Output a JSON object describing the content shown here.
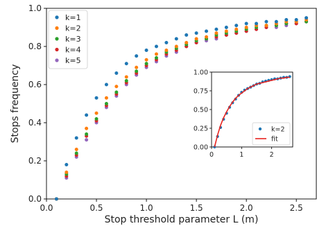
{
  "chart_data": [
    {
      "type": "scatter",
      "title": "",
      "xlabel": "Stop threshold parameter L (m)",
      "ylabel": "Stops frequency",
      "xlim": [
        0.0,
        2.7
      ],
      "ylim": [
        0.0,
        1.0
      ],
      "xticks": [
        "0.0",
        "0.5",
        "1.0",
        "1.5",
        "2.0",
        "2.5"
      ],
      "yticks": [
        "0.0",
        "0.2",
        "0.4",
        "0.6",
        "0.8",
        "1.0"
      ],
      "legend_position": "top-left",
      "grid": false,
      "x": [
        0.1,
        0.2,
        0.3,
        0.4,
        0.5,
        0.6,
        0.7,
        0.8,
        0.9,
        1.0,
        1.1,
        1.2,
        1.3,
        1.4,
        1.5,
        1.6,
        1.7,
        1.8,
        1.9,
        2.0,
        2.1,
        2.2,
        2.3,
        2.4,
        2.5,
        2.6
      ],
      "series": [
        {
          "name": "k=1",
          "color": "#1f77b4",
          "values": [
            0.0,
            0.18,
            0.32,
            0.44,
            0.53,
            0.6,
            0.66,
            0.71,
            0.75,
            0.78,
            0.8,
            0.82,
            0.84,
            0.86,
            0.87,
            0.88,
            0.89,
            0.9,
            0.91,
            0.92,
            0.92,
            0.93,
            0.93,
            0.94,
            0.94,
            0.95
          ]
        },
        {
          "name": "k=2",
          "color": "#ff7f0e",
          "values": [
            0.0,
            0.14,
            0.26,
            0.37,
            0.45,
            0.53,
            0.59,
            0.64,
            0.69,
            0.73,
            0.76,
            0.78,
            0.8,
            0.82,
            0.84,
            0.85,
            0.87,
            0.88,
            0.89,
            0.9,
            0.91,
            0.91,
            0.92,
            0.93,
            0.93,
            0.94
          ]
        },
        {
          "name": "k=3",
          "color": "#2ca02c",
          "values": [
            0.0,
            0.13,
            0.24,
            0.34,
            0.42,
            0.5,
            0.56,
            0.62,
            0.67,
            0.71,
            0.74,
            0.77,
            0.79,
            0.81,
            0.83,
            0.84,
            0.86,
            0.87,
            0.88,
            0.89,
            0.9,
            0.91,
            0.91,
            0.92,
            0.93,
            0.93
          ]
        },
        {
          "name": "k=4",
          "color": "#d62728",
          "values": [
            0.0,
            0.12,
            0.23,
            0.33,
            0.41,
            0.49,
            0.55,
            0.61,
            0.66,
            0.7,
            0.73,
            0.76,
            0.78,
            0.8,
            0.82,
            0.84,
            0.85,
            0.86,
            0.87,
            0.88,
            0.89,
            0.9,
            0.91,
            0.92,
            0.92,
            0.93
          ]
        },
        {
          "name": "k=5",
          "color": "#9467bd",
          "values": [
            0.0,
            0.11,
            0.22,
            0.31,
            0.4,
            0.48,
            0.54,
            0.6,
            0.65,
            0.69,
            0.72,
            0.75,
            0.77,
            0.8,
            0.82,
            0.83,
            0.84,
            0.86,
            0.87,
            0.88,
            0.89,
            0.9,
            0.9,
            0.91,
            0.92,
            0.93
          ]
        }
      ]
    },
    {
      "type": "line",
      "title": "",
      "xlabel": "",
      "ylabel": "",
      "xlim": [
        0.0,
        2.7
      ],
      "ylim": [
        0.0,
        1.0
      ],
      "xticks": [
        "0",
        "1",
        "2"
      ],
      "yticks": [
        "0.00",
        "0.25",
        "0.50",
        "0.75",
        "1.00"
      ],
      "legend_position": "lower-right",
      "grid": false,
      "x": [
        0.1,
        0.2,
        0.3,
        0.4,
        0.5,
        0.6,
        0.7,
        0.8,
        0.9,
        1.0,
        1.1,
        1.2,
        1.3,
        1.4,
        1.5,
        1.6,
        1.7,
        1.8,
        1.9,
        2.0,
        2.1,
        2.2,
        2.3,
        2.4,
        2.5,
        2.6
      ],
      "series": [
        {
          "name": "k=2",
          "kind": "scatter",
          "color": "#1f77b4",
          "values": [
            0.0,
            0.14,
            0.26,
            0.37,
            0.45,
            0.53,
            0.59,
            0.64,
            0.69,
            0.73,
            0.76,
            0.78,
            0.8,
            0.82,
            0.84,
            0.85,
            0.87,
            0.88,
            0.89,
            0.9,
            0.91,
            0.91,
            0.92,
            0.93,
            0.93,
            0.94
          ]
        },
        {
          "name": "fit",
          "kind": "line",
          "color": "#e8231f",
          "values": [
            0.0,
            0.16,
            0.29,
            0.39,
            0.47,
            0.54,
            0.6,
            0.65,
            0.69,
            0.72,
            0.75,
            0.78,
            0.8,
            0.82,
            0.84,
            0.85,
            0.86,
            0.87,
            0.88,
            0.89,
            0.9,
            0.91,
            0.92,
            0.92,
            0.93,
            0.93
          ]
        }
      ]
    }
  ]
}
